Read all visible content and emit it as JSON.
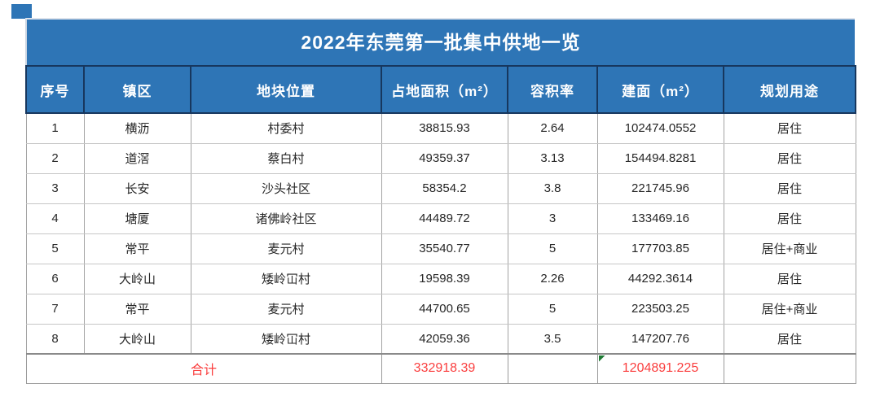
{
  "chart_data": {
    "type": "table",
    "title": "2022年东莞第一批集中供地一览",
    "columns": [
      "序号",
      "镇区",
      "地块位置",
      "占地面积（m²）",
      "容积率",
      "建面（m²）",
      "规划用途"
    ],
    "rows": [
      [
        "1",
        "横沥",
        "村委村",
        "38815.93",
        "2.64",
        "102474.0552",
        "居住"
      ],
      [
        "2",
        "道滘",
        "蔡白村",
        "49359.37",
        "3.13",
        "154494.8281",
        "居住"
      ],
      [
        "3",
        "长安",
        "沙头社区",
        "58354.2",
        "3.8",
        "221745.96",
        "居住"
      ],
      [
        "4",
        "塘厦",
        "诸佛岭社区",
        "44489.72",
        "3",
        "133469.16",
        "居住"
      ],
      [
        "5",
        "常平",
        "麦元村",
        "35540.77",
        "5",
        "177703.85",
        "居住+商业"
      ],
      [
        "6",
        "大岭山",
        "矮岭冚村",
        "19598.39",
        "2.26",
        "44292.3614",
        "居住"
      ],
      [
        "7",
        "常平",
        "麦元村",
        "44700.65",
        "5",
        "223503.25",
        "居住+商业"
      ],
      [
        "8",
        "大岭山",
        "矮岭冚村",
        "42059.36",
        "3.5",
        "147207.76",
        "居住"
      ]
    ],
    "total_row": {
      "label": "合计",
      "land_area_total": "332918.39",
      "plot_ratio_total": "",
      "floor_area_total": "1204891.225",
      "usage_total": ""
    },
    "layout_hints": {
      "header_style": "blue band with dark navy borders",
      "total_row_text": "red",
      "floor_area_total_flag": "green error triangle, top-left corner"
    }
  },
  "colors": {
    "header_bg": "#2e75b6",
    "header_border": "#17375e",
    "total_text_red": "#fa3e3e",
    "error_flag_green": "#1e7a34",
    "grid_line_gray": "#a6a6a6"
  }
}
